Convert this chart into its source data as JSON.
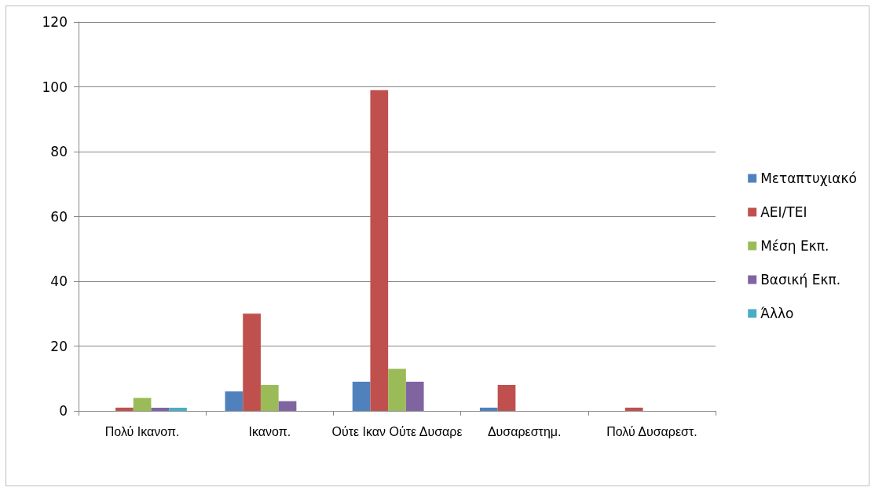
{
  "chart_data": {
    "type": "bar",
    "categories": [
      "Πολύ Ικανοπ.",
      "Ικανοπ.",
      "Ούτε Ικαν Ούτε Δυσαρε",
      "Δυσαρεστημ.",
      "Πολύ Δυσαρεστ."
    ],
    "series": [
      {
        "name": "Μεταπτυχιακό",
        "color": "#4f81bd",
        "values": [
          0,
          6,
          9,
          1,
          0
        ]
      },
      {
        "name": "ΑΕΙ/ΤΕΙ",
        "color": "#c0504d",
        "values": [
          1,
          30,
          99,
          8,
          1
        ]
      },
      {
        "name": "Μέση Εκπ.",
        "color": "#9bbb59",
        "values": [
          4,
          8,
          13,
          0,
          0
        ]
      },
      {
        "name": "Βασική Εκπ.",
        "color": "#8064a2",
        "values": [
          1,
          3,
          9,
          0,
          0
        ]
      },
      {
        "name": "Άλλο",
        "color": "#4bacc6",
        "values": [
          1,
          0,
          0,
          0,
          0
        ]
      }
    ],
    "ylim": [
      0,
      120
    ],
    "yticks": [
      0,
      20,
      40,
      60,
      80,
      100,
      120
    ],
    "grid": "y",
    "legend": "right"
  }
}
